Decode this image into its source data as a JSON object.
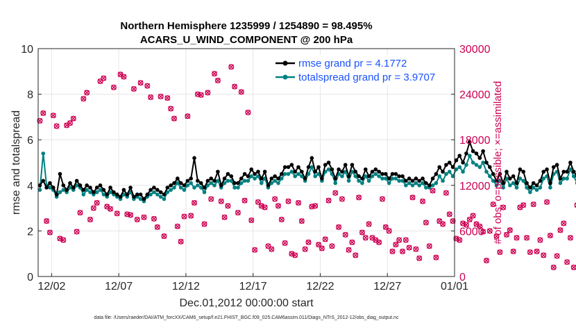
{
  "chart_data": {
    "type": "line",
    "title_line1": "Northern Hemisphere 1235999 / 1254890 = 98.495%",
    "title_line2": "ACARS_U_WIND_COMPONENT @ 200 hPa",
    "xlabel": "Dec.01,2012 00:00:00 start",
    "ylabel_left": "rmse and totalspread",
    "ylabel_right": "# of obs: o=possible; ×=assimilated",
    "footnote": "data file: /Users/raeder/DAI/ATM_forcXX/CAM6_setup/f.e21.FHIST_BGC.f09_025.CAM6assim.011/Diags_NTrS_2012-12/obs_diag_output.nc",
    "xlim": [
      0,
      31
    ],
    "ylim_left": [
      0,
      10
    ],
    "ylim_right": [
      0,
      30000
    ],
    "x_ticks": [
      {
        "value": 1,
        "label": "12/02"
      },
      {
        "value": 6,
        "label": "12/07"
      },
      {
        "value": 11,
        "label": "12/12"
      },
      {
        "value": 16,
        "label": "12/17"
      },
      {
        "value": 21,
        "label": "12/22"
      },
      {
        "value": 26,
        "label": "12/27"
      },
      {
        "value": 31,
        "label": "01/01"
      }
    ],
    "y_ticks_left": [
      "0",
      "2",
      "4",
      "6",
      "8",
      "10"
    ],
    "y_ticks_right": [
      "0",
      "6000",
      "12000",
      "18000",
      "24000",
      "30000"
    ],
    "legend": {
      "position": "top-right",
      "entries": [
        "rmse grand pr = 4.1772",
        "totalspread grand pr = 3.9707"
      ]
    },
    "colors": {
      "rmse": "#000000",
      "spread": "#008080",
      "obs": "#cc0052",
      "legend_text": "#1a52ff",
      "grid": "#e6e6e6"
    },
    "series": [
      {
        "name": "rmse",
        "x_start": 0.125,
        "x_step": 0.25,
        "values": [
          4.0,
          4.2,
          3.9,
          4.1,
          3.9,
          3.6,
          4.5,
          4.0,
          3.8,
          4.1,
          3.9,
          4.2,
          4.0,
          3.8,
          4.0,
          3.9,
          3.7,
          3.9,
          4.0,
          3.8,
          3.6,
          3.9,
          3.7,
          3.6,
          3.5,
          3.8,
          3.6,
          3.9,
          3.5,
          3.6,
          3.6,
          3.4,
          3.6,
          3.8,
          3.9,
          3.8,
          3.7,
          3.6,
          3.9,
          4.0,
          4.1,
          4.3,
          4.1,
          4.0,
          4.2,
          4.3,
          5.2,
          4.2,
          4.1,
          3.9,
          4.2,
          4.3,
          4.2,
          4.6,
          4.0,
          4.3,
          4.5,
          4.4,
          4.1,
          4.1,
          4.3,
          4.5,
          4.4,
          4.7,
          4.5,
          4.6,
          4.3,
          4.6,
          4.0,
          4.3,
          4.4,
          4.3,
          4.5,
          4.8,
          4.8,
          4.9,
          4.6,
          4.8,
          4.6,
          4.3,
          4.8,
          5.2,
          4.6,
          4.8,
          4.3,
          4.9,
          5.0,
          4.7,
          4.3,
          4.7,
          4.6,
          4.9,
          4.4,
          4.9,
          4.6,
          4.4,
          4.3,
          4.7,
          4.4,
          4.6,
          4.7,
          4.6,
          4.5,
          4.5,
          4.3,
          4.5,
          4.5,
          4.4,
          4.4,
          4.2,
          4.3,
          4.2,
          4.3,
          4.2,
          4.3,
          4.1,
          4.0,
          4.3,
          4.5,
          4.8,
          4.6,
          4.9,
          5.0,
          4.8,
          5.1,
          5.3,
          5.0,
          5.4,
          5.9,
          5.5,
          5.4,
          5.2,
          5.5,
          5.0,
          4.8,
          4.5,
          4.2,
          4.5,
          4.1,
          4.6,
          4.3,
          4.4,
          4.1,
          4.7,
          4.6,
          4.1,
          3.9,
          4.1,
          4.0,
          4.2,
          4.6,
          4.7,
          4.1,
          4.8,
          4.9,
          4.3,
          4.6,
          4.6,
          5.0,
          4.6,
          4.4,
          4.3
        ]
      },
      {
        "name": "totalspread",
        "x_start": 0.125,
        "x_step": 0.25,
        "values": [
          3.8,
          5.4,
          4.0,
          3.9,
          3.8,
          3.5,
          3.7,
          3.8,
          3.7,
          3.9,
          3.8,
          4.0,
          3.9,
          3.6,
          3.8,
          3.7,
          3.6,
          3.7,
          3.8,
          3.6,
          3.5,
          3.7,
          3.6,
          3.5,
          3.4,
          3.6,
          3.5,
          3.7,
          3.4,
          3.5,
          3.4,
          3.3,
          3.5,
          3.6,
          3.7,
          3.6,
          3.5,
          3.4,
          3.7,
          3.8,
          3.9,
          4.1,
          3.9,
          3.8,
          4.0,
          4.1,
          3.9,
          4.0,
          3.9,
          3.7,
          4.0,
          4.1,
          4.0,
          4.2,
          3.9,
          4.1,
          4.2,
          4.2,
          3.9,
          3.9,
          4.1,
          4.2,
          4.2,
          4.4,
          4.3,
          4.4,
          4.1,
          4.3,
          3.9,
          4.1,
          4.2,
          4.1,
          4.3,
          4.5,
          4.5,
          4.6,
          4.4,
          4.5,
          4.4,
          4.2,
          4.5,
          4.8,
          4.4,
          4.5,
          4.2,
          4.6,
          4.7,
          4.5,
          4.1,
          4.5,
          4.4,
          4.6,
          4.2,
          4.6,
          4.4,
          4.2,
          4.1,
          4.4,
          4.2,
          4.4,
          4.5,
          4.4,
          4.3,
          4.3,
          4.1,
          4.3,
          4.3,
          4.2,
          4.2,
          4.0,
          4.1,
          4.0,
          4.1,
          4.0,
          4.1,
          3.9,
          3.9,
          4.0,
          4.1,
          4.4,
          4.2,
          4.5,
          4.6,
          4.4,
          4.7,
          4.8,
          4.6,
          4.9,
          5.3,
          5.0,
          4.9,
          4.8,
          5.0,
          4.6,
          4.4,
          4.2,
          4.0,
          4.2,
          3.9,
          4.3,
          4.0,
          4.1,
          3.9,
          4.3,
          4.2,
          3.9,
          3.7,
          3.9,
          3.8,
          3.9,
          4.3,
          4.4,
          3.9,
          4.5,
          4.6,
          4.1,
          4.3,
          4.3,
          4.7,
          4.4,
          4.1,
          4.0
        ]
      },
      {
        "name": "observations",
        "x_start": 0.125,
        "x_step": 0.25,
        "values": [
          20500,
          21500,
          7300,
          5800,
          21200,
          19800,
          5000,
          4800,
          19900,
          20200,
          20800,
          5900,
          8400,
          23400,
          24200,
          7500,
          9000,
          9700,
          25700,
          26100,
          9200,
          8900,
          24900,
          8300,
          26600,
          26300,
          8200,
          8100,
          24700,
          7500,
          25500,
          7800,
          25100,
          23600,
          7600,
          6500,
          23700,
          5300,
          23500,
          22100,
          20800,
          6600,
          4600,
          7900,
          21100,
          8000,
          9700,
          24000,
          23900,
          6900,
          24200,
          10200,
          26700,
          25800,
          9900,
          7800,
          9300,
          27600,
          25000,
          8400,
          24300,
          10000,
          21600,
          7400,
          3500,
          9800,
          9300,
          9100,
          4000,
          3600,
          10200,
          9300,
          7500,
          4400,
          9900,
          3000,
          2800,
          9700,
          7300,
          3600,
          4500,
          9200,
          9300,
          4200,
          3700,
          4900,
          10000,
          4000,
          11000,
          6500,
          10200,
          5500,
          3500,
          4500,
          2800,
          10400,
          5800,
          5100,
          6900,
          5100,
          4800,
          4500,
          10200,
          6500,
          6000,
          3300,
          4200,
          4800,
          3300,
          4800,
          3800,
          10400,
          3600,
          2400,
          9900,
          7100,
          4000,
          11300,
          2500,
          7300,
          6900,
          11000,
          8200,
          7300,
          5000,
          4800,
          7000,
          6800,
          7500,
          8000,
          6900,
          6600,
          5900,
          2100,
          6000,
          9500,
          5300,
          3200,
          9100,
          5500,
          6100,
          3300,
          5100,
          9100,
          9400,
          5100,
          3200,
          9500,
          3300,
          4800,
          2800,
          9800,
          5400,
          1200,
          2700,
          6100,
          7000,
          1900,
          5100,
          1200,
          9400,
          8100
        ]
      }
    ]
  }
}
